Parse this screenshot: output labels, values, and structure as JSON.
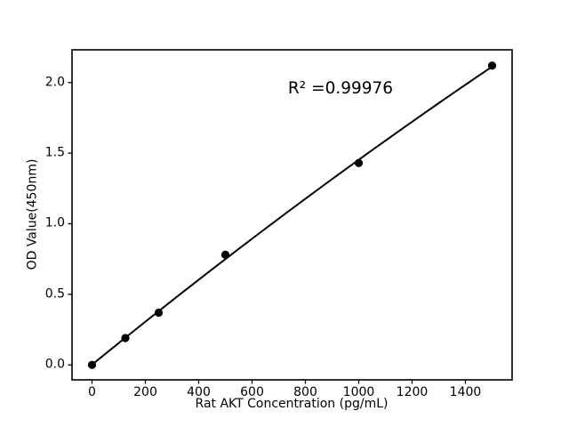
{
  "chart_data": {
    "type": "scatter",
    "title": "",
    "xlabel": "Rat AKT Concentration (pg/mL)",
    "ylabel": "OD Value(450nm)",
    "annotation": "R² =0.99976",
    "points": {
      "x": [
        0,
        125,
        250,
        500,
        1000,
        1500
      ],
      "y": [
        0.0,
        0.19,
        0.37,
        0.78,
        1.43,
        2.12
      ]
    },
    "fit": "quadratic",
    "xticks": [
      0,
      200,
      400,
      600,
      800,
      1000,
      1200,
      1400
    ],
    "yticks": [
      0.0,
      0.5,
      1.0,
      1.5,
      2.0
    ],
    "ytick_labels": [
      "0.0",
      "0.5",
      "1.0",
      "1.5",
      "2.0"
    ],
    "xlim": [
      -75,
      1575
    ],
    "ylim": [
      -0.106,
      2.232
    ],
    "grid": false,
    "legend": null,
    "colors": {
      "line": "#000000",
      "marker": "#000000",
      "axis": "#000000",
      "background": "#ffffff"
    }
  }
}
